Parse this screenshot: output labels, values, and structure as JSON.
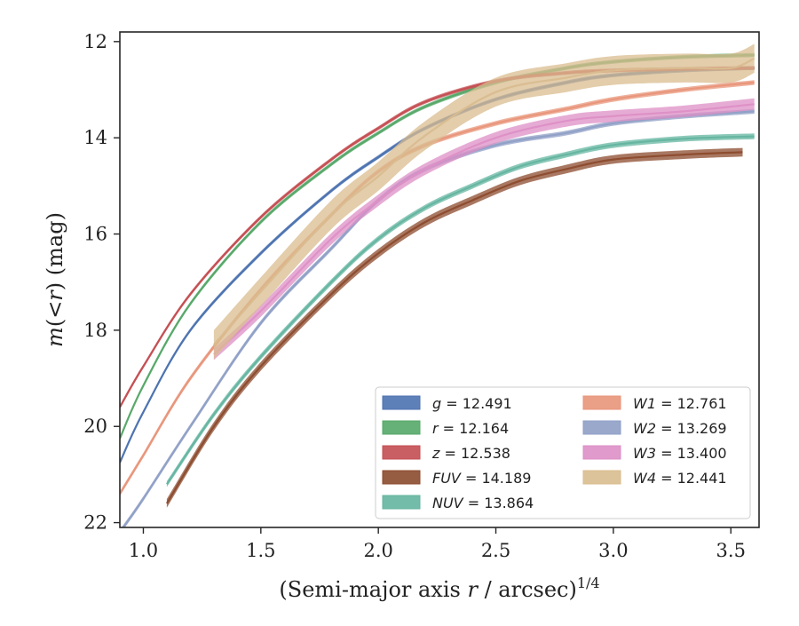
{
  "chart_data": {
    "type": "line",
    "xlabel": "(Semi-major axis r / arcsec)",
    "xlabel_parts": {
      "pre": "(Semi-major axis ",
      "var": "r",
      "post": " / arcsec)",
      "sup": "1/4"
    },
    "ylabel": "m(< r) (mag)",
    "ylabel_parts": {
      "var1": "m",
      "mid": "(<",
      "var2": "r",
      "post": ") (mag)"
    },
    "xlim": [
      0.9,
      3.62
    ],
    "ylim": [
      22.1,
      11.8
    ],
    "y_inverted": true,
    "xticks": [
      1.0,
      1.5,
      2.0,
      2.5,
      3.0,
      3.5
    ],
    "xtick_labels": [
      "1.0",
      "1.5",
      "2.0",
      "2.5",
      "3.0",
      "3.5"
    ],
    "yticks": [
      12,
      14,
      16,
      18,
      20,
      22
    ],
    "ytick_labels": [
      "12",
      "14",
      "16",
      "18",
      "20",
      "22"
    ],
    "grid": false,
    "legend_position": "lower-right",
    "legend_columns": 2,
    "series": [
      {
        "name": "g",
        "label_value": "12.491",
        "color": "#4c72b0",
        "x": [
          0.9,
          1.0,
          1.2,
          1.5,
          1.8,
          2.0,
          2.2,
          2.5,
          2.8,
          3.0,
          3.3,
          3.6
        ],
        "y": [
          20.75,
          19.7,
          18.0,
          16.4,
          15.1,
          14.4,
          13.8,
          13.2,
          12.85,
          12.7,
          12.6,
          12.55
        ],
        "band": 0.04
      },
      {
        "name": "r",
        "label_value": "12.164",
        "color": "#55a868",
        "x": [
          0.9,
          1.0,
          1.2,
          1.5,
          1.8,
          2.0,
          2.2,
          2.5,
          2.8,
          3.0,
          3.3,
          3.6
        ],
        "y": [
          20.25,
          19.15,
          17.45,
          15.75,
          14.55,
          13.9,
          13.35,
          12.85,
          12.55,
          12.42,
          12.32,
          12.28
        ],
        "band": 0.04
      },
      {
        "name": "z",
        "label_value": "12.538",
        "color": "#c44e52",
        "x": [
          0.9,
          1.0,
          1.2,
          1.5,
          1.8,
          2.0,
          2.2,
          2.5,
          2.8,
          3.0,
          3.3,
          3.6
        ],
        "y": [
          19.6,
          18.75,
          17.25,
          15.65,
          14.45,
          13.8,
          13.25,
          12.82,
          12.65,
          12.6,
          12.57,
          12.55
        ],
        "band": 0.04
      },
      {
        "name": "FUV",
        "label_value": "14.189",
        "color": "#8c4b2d",
        "x": [
          1.1,
          1.3,
          1.5,
          1.8,
          2.0,
          2.2,
          2.4,
          2.6,
          2.8,
          3.0,
          3.3,
          3.55
        ],
        "y": [
          21.6,
          20.0,
          18.75,
          17.25,
          16.4,
          15.75,
          15.3,
          14.9,
          14.65,
          14.45,
          14.35,
          14.3
        ],
        "band": 0.09
      },
      {
        "name": "NUV",
        "label_value": "13.864",
        "color": "#64b5a0",
        "x": [
          1.1,
          1.3,
          1.5,
          1.8,
          2.0,
          2.2,
          2.4,
          2.6,
          2.8,
          3.0,
          3.3,
          3.6
        ],
        "y": [
          21.2,
          19.75,
          18.55,
          17.0,
          16.1,
          15.45,
          15.0,
          14.6,
          14.35,
          14.15,
          14.02,
          13.97
        ],
        "band": 0.06
      },
      {
        "name": "W1",
        "label_value": "12.761",
        "color": "#e8957a",
        "x": [
          0.9,
          1.0,
          1.2,
          1.5,
          1.8,
          2.0,
          2.2,
          2.5,
          2.8,
          3.0,
          3.3,
          3.6
        ],
        "y": [
          21.4,
          20.6,
          19.0,
          17.15,
          15.6,
          14.7,
          14.15,
          13.7,
          13.4,
          13.2,
          13.0,
          12.85
        ],
        "band": 0.05
      },
      {
        "name": "W2",
        "label_value": "13.269",
        "color": "#8f9fc6",
        "x": [
          0.9,
          1.0,
          1.2,
          1.5,
          1.8,
          2.0,
          2.2,
          2.5,
          2.8,
          3.0,
          3.3,
          3.6
        ],
        "y": [
          22.2,
          21.5,
          20.0,
          17.85,
          16.3,
          15.3,
          14.65,
          14.15,
          13.9,
          13.7,
          13.55,
          13.45
        ],
        "band": 0.05
      },
      {
        "name": "W3",
        "label_value": "13.400",
        "color": "#dd8fc6",
        "x": [
          1.3,
          1.5,
          1.8,
          2.0,
          2.2,
          2.5,
          2.8,
          3.0,
          3.3,
          3.6
        ],
        "y": [
          18.5,
          17.6,
          16.1,
          15.3,
          14.65,
          14.0,
          13.65,
          13.55,
          13.45,
          13.3
        ],
        "band": 0.12
      },
      {
        "name": "W4",
        "label_value": "12.441",
        "color": "#d9bc8f",
        "x": [
          1.3,
          1.5,
          1.8,
          2.0,
          2.2,
          2.5,
          2.8,
          3.0,
          3.3,
          3.5,
          3.6
        ],
        "y": [
          18.3,
          17.2,
          15.6,
          14.8,
          13.95,
          13.05,
          12.75,
          12.6,
          12.55,
          12.55,
          12.35
        ],
        "band": 0.3
      }
    ]
  }
}
